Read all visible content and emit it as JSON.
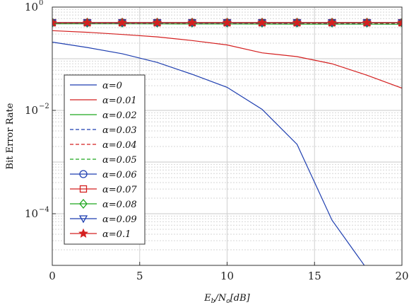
{
  "chart_data": {
    "type": "line",
    "xlabel": "E_b/N_o[dB]",
    "xlabel_parts": {
      "e": "E",
      "b": "b",
      "slash": "/N",
      "o": "o",
      "unit": "[dB]"
    },
    "ylabel": "Bit Error Rate",
    "x_scale": "linear",
    "y_scale": "log",
    "xlim": [
      0,
      20
    ],
    "ylim": [
      1e-05,
      1
    ],
    "x_ticks": [
      "0",
      "5",
      "10",
      "15",
      "20"
    ],
    "y_ticks": [
      {
        "value": 1,
        "base": "10",
        "exp": "0"
      },
      {
        "value": 0.01,
        "base": "10",
        "exp": "−2"
      },
      {
        "value": 0.0001,
        "base": "10",
        "exp": "−4"
      }
    ],
    "grid": true,
    "legend_position": "center-left",
    "x": [
      0,
      2,
      4,
      6,
      8,
      10,
      12,
      14,
      16,
      18,
      20
    ],
    "series": [
      {
        "name": "α=0",
        "color": "#1f3fb0",
        "dash": "solid",
        "marker": "none",
        "values": [
          0.21,
          0.165,
          0.125,
          0.085,
          0.05,
          0.028,
          0.0105,
          0.0022,
          7.5e-05,
          8.5e-06,
          null
        ],
        "extra_points": [
          [
            18,
            8.5e-06
          ]
        ]
      },
      {
        "name": "α=0.01",
        "color": "#d42020",
        "dash": "solid",
        "marker": "none",
        "values": [
          0.35,
          0.325,
          0.295,
          0.265,
          0.225,
          0.185,
          0.13,
          0.11,
          0.08,
          0.048,
          0.027
        ]
      },
      {
        "name": "α=0.02",
        "color": "#1ea61e",
        "dash": "solid",
        "marker": "none",
        "values": [
          0.475,
          0.474,
          0.473,
          0.472,
          0.471,
          0.47,
          0.469,
          0.468,
          0.467,
          0.466,
          0.465
        ]
      },
      {
        "name": "α=0.03",
        "color": "#1f3fb0",
        "dash": "dashed",
        "marker": "none",
        "values": [
          0.485,
          0.484,
          0.483,
          0.482,
          0.481,
          0.48,
          0.479,
          0.478,
          0.477,
          0.476,
          0.475
        ]
      },
      {
        "name": "α=0.04",
        "color": "#d42020",
        "dash": "dashed",
        "marker": "none",
        "values": [
          0.49,
          0.489,
          0.488,
          0.487,
          0.486,
          0.485,
          0.484,
          0.483,
          0.482,
          0.481,
          0.48
        ]
      },
      {
        "name": "α=0.05",
        "color": "#1ea61e",
        "dash": "dashed",
        "marker": "none",
        "values": [
          0.495,
          0.494,
          0.493,
          0.492,
          0.491,
          0.49,
          0.489,
          0.488,
          0.487,
          0.486,
          0.485
        ]
      },
      {
        "name": "α=0.06",
        "color": "#1f3fb0",
        "dash": "solid",
        "marker": "circle",
        "values": [
          0.5,
          0.5,
          0.5,
          0.5,
          0.5,
          0.5,
          0.5,
          0.5,
          0.5,
          0.5,
          0.5
        ]
      },
      {
        "name": "α=0.07",
        "color": "#d42020",
        "dash": "solid",
        "marker": "square",
        "values": [
          0.5,
          0.5,
          0.5,
          0.5,
          0.5,
          0.5,
          0.5,
          0.5,
          0.5,
          0.5,
          0.5
        ]
      },
      {
        "name": "α=0.08",
        "color": "#1ea61e",
        "dash": "solid",
        "marker": "diamond",
        "values": [
          0.5,
          0.5,
          0.5,
          0.5,
          0.5,
          0.5,
          0.5,
          0.5,
          0.5,
          0.5,
          0.5
        ]
      },
      {
        "name": "α=0.09",
        "color": "#1f3fb0",
        "dash": "solid",
        "marker": "triangle-down",
        "values": [
          0.5,
          0.5,
          0.5,
          0.5,
          0.5,
          0.5,
          0.5,
          0.5,
          0.5,
          0.5,
          0.5
        ]
      },
      {
        "name": "α=0.1",
        "color": "#d42020",
        "dash": "solid",
        "marker": "star",
        "values": [
          0.5,
          0.5,
          0.5,
          0.5,
          0.5,
          0.5,
          0.5,
          0.5,
          0.5,
          0.5,
          0.5
        ]
      }
    ]
  }
}
